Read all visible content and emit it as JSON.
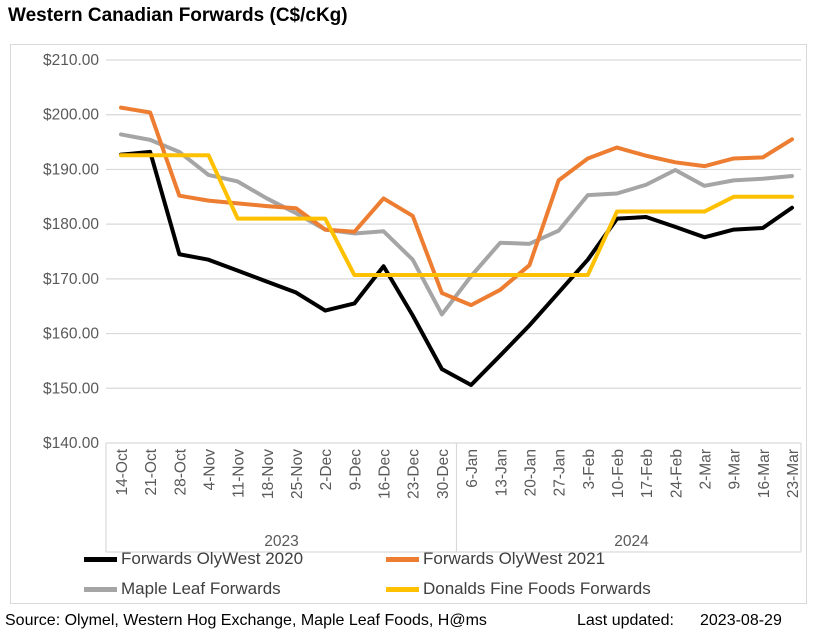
{
  "title": "Western Canadian Forwards (C$/cKg)",
  "footer": {
    "source": "Source: Olymel, Western Hog Exchange, Maple Leaf Foods, H@ms",
    "last_updated_label": "Last updated:",
    "last_updated_value": "2023-08-29"
  },
  "colors": {
    "gridline": "#D9D9D9",
    "axis_text": "#595959",
    "chart_border": "#D9D9D9"
  },
  "chart_data": {
    "type": "line",
    "title": "Western Canadian Forwards (C$/cKg)",
    "categories": [
      "14-Oct",
      "21-Oct",
      "28-Oct",
      "4-Nov",
      "11-Nov",
      "18-Nov",
      "25-Nov",
      "2-Dec",
      "9-Dec",
      "16-Dec",
      "23-Dec",
      "30-Dec",
      "6-Jan",
      "13-Jan",
      "20-Jan",
      "27-Jan",
      "3-Feb",
      "10-Feb",
      "17-Feb",
      "24-Feb",
      "2-Mar",
      "9-Mar",
      "16-Mar",
      "23-Mar"
    ],
    "year_groups": [
      {
        "label": "2023",
        "from": 0,
        "to": 11
      },
      {
        "label": "2024",
        "from": 12,
        "to": 23
      }
    ],
    "series": [
      {
        "name": "Forwards OlyWest 2020",
        "color": "#000000",
        "values": [
          192.7,
          193.2,
          174.5,
          173.5,
          171.5,
          169.5,
          167.5,
          164.2,
          165.5,
          172.3,
          163.3,
          153.5,
          150.6,
          156.0,
          161.5,
          167.5,
          173.5,
          181.0,
          181.3,
          179.5,
          177.6,
          179.0,
          179.3,
          183.0
        ]
      },
      {
        "name": "Forwards OlyWest 2021",
        "color": "#ED7D31",
        "values": [
          201.3,
          200.4,
          185.2,
          184.3,
          183.8,
          183.3,
          182.9,
          179.0,
          178.6,
          184.7,
          181.5,
          167.4,
          165.2,
          168.0,
          172.5,
          188.0,
          192.0,
          194.0,
          192.5,
          191.3,
          190.6,
          192.0,
          192.2,
          195.5
        ]
      },
      {
        "name": "Maple Leaf Forwards",
        "color": "#A5A5A5",
        "values": [
          196.4,
          195.4,
          193.2,
          189.0,
          187.8,
          184.7,
          182.0,
          179.0,
          178.3,
          178.7,
          173.5,
          163.5,
          170.5,
          176.6,
          176.4,
          178.8,
          185.3,
          185.6,
          187.2,
          189.9,
          187.0,
          188.0,
          188.3,
          188.8
        ]
      },
      {
        "name": "Donalds Fine Foods Forwards",
        "color": "#FFC000",
        "values": [
          192.6,
          192.6,
          192.6,
          192.6,
          181.0,
          181.0,
          181.0,
          181.0,
          170.7,
          170.7,
          170.7,
          170.7,
          170.7,
          170.7,
          170.7,
          170.7,
          170.7,
          182.3,
          182.3,
          182.3,
          182.3,
          185.0,
          185.0,
          185.0
        ]
      }
    ],
    "y_axis": {
      "min": 140,
      "max": 210,
      "step": 10,
      "tick_prefix": "$",
      "tick_suffix": ".00"
    },
    "grid": true,
    "legend_position": "bottom-two-columns",
    "ylim": [
      140,
      210
    ]
  }
}
